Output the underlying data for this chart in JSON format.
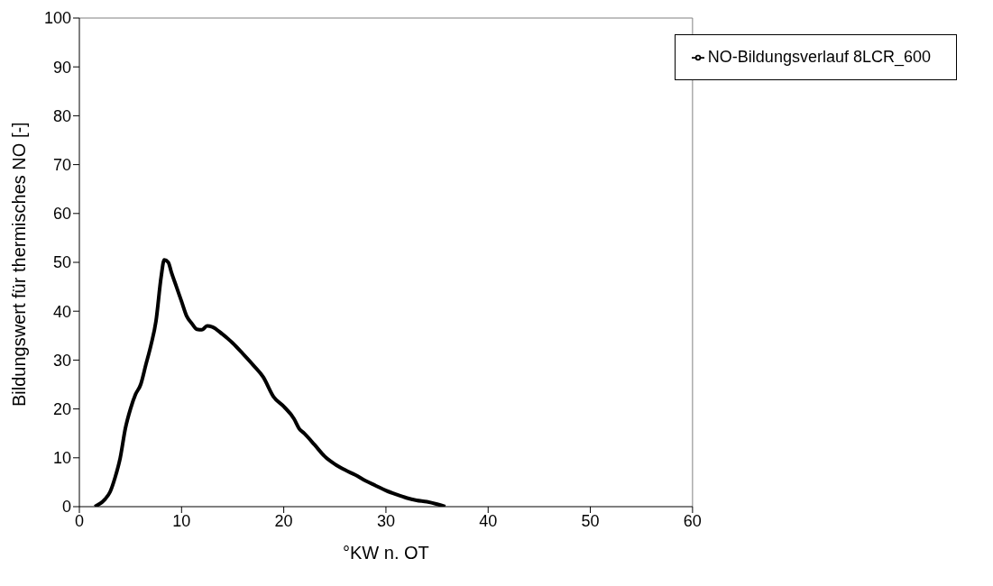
{
  "chart_data": {
    "type": "line",
    "xlabel": "°KW n. OT",
    "ylabel": "Bildungswert für thermisches NO [-]",
    "xlim": [
      0,
      60
    ],
    "xticks": [
      0,
      10,
      20,
      30,
      40,
      50,
      60
    ],
    "ylim": [
      0,
      100
    ],
    "yticks": [
      0,
      10,
      20,
      30,
      40,
      50,
      60,
      70,
      80,
      90,
      100
    ],
    "legend": "top right",
    "marker": "none",
    "line_style": "solid",
    "series": [
      {
        "name": "NO-Bildungsverlauf  8LCR_600",
        "color": "#000000",
        "x": [
          1.5,
          2.5,
          3,
          3.5,
          4,
          4.5,
          5,
          5.5,
          6,
          6.5,
          7,
          7.5,
          8,
          8.3,
          8.7,
          9,
          9.5,
          10,
          10.5,
          11,
          11.5,
          12,
          12.5,
          13,
          14,
          15,
          16,
          17,
          18,
          19,
          20,
          21,
          21.5,
          22,
          23,
          24,
          25,
          26,
          27,
          28,
          29,
          30,
          31,
          32,
          33,
          34,
          35,
          35.8
        ],
        "values": [
          0,
          1.5,
          3,
          6,
          10,
          16,
          20,
          23,
          25,
          29,
          33,
          38,
          47,
          50.5,
          50,
          48,
          45,
          42,
          39,
          37.5,
          36.3,
          36.2,
          37,
          36.8,
          35.3,
          33.5,
          31.3,
          29,
          26.5,
          22.5,
          20.5,
          18,
          16,
          15,
          12.7,
          10.3,
          8.7,
          7.5,
          6.5,
          5.3,
          4.3,
          3.3,
          2.5,
          1.8,
          1.3,
          1,
          0.5,
          0
        ]
      }
    ]
  }
}
